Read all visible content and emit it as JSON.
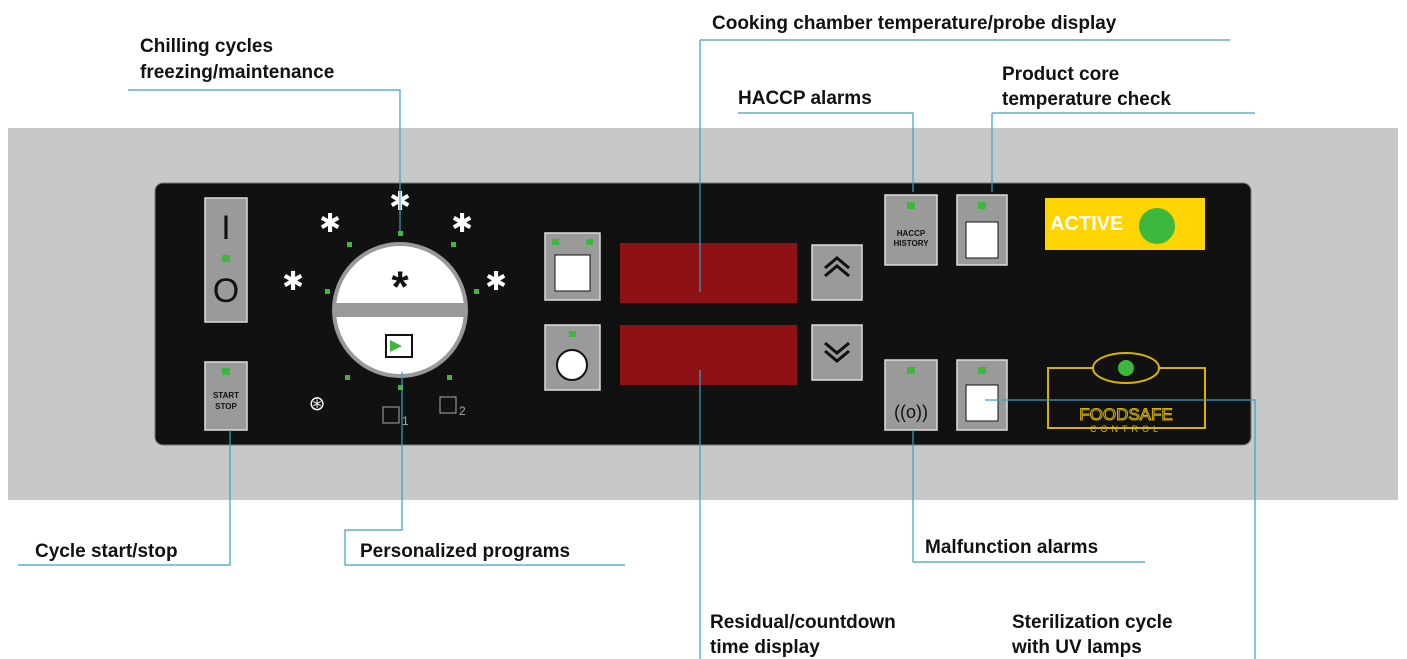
{
  "callouts": [
    {
      "lines": [
        "Chilling cycles",
        "freezing/maintenance"
      ]
    },
    {
      "lines": [
        "Cooking chamber temperature/probe display"
      ]
    },
    {
      "lines": [
        "HACCP alarms"
      ]
    },
    {
      "lines": [
        "Product core",
        "temperature check"
      ]
    },
    {
      "lines": [
        "Cycle start/stop"
      ]
    },
    {
      "lines": [
        "Personalized programs"
      ]
    },
    {
      "lines": [
        "Malfunction alarms"
      ]
    },
    {
      "lines": [
        "Residual/countdown",
        "time display"
      ]
    },
    {
      "lines": [
        "Sterilization cycle",
        "with UV lamps"
      ]
    }
  ],
  "panel": {
    "power_on": "I",
    "power_off": "O",
    "start": "START",
    "stop": "STOP",
    "haccp": "HACCP",
    "history": "HISTORY",
    "active": "ACTIVE",
    "foodsafe": "FOODSAFE",
    "control": "CONTROL",
    "program_icons": [
      "1",
      "2"
    ]
  }
}
